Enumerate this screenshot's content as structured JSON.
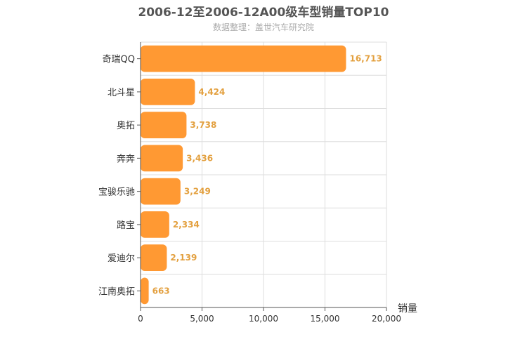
{
  "header": {
    "title": "2006-12至2006-12A00级车型销量TOP10",
    "subtitle": "数据整理：盖世汽车研究院"
  },
  "colors": {
    "bar": "#ff9933",
    "value_label": "#e3a03f",
    "grid": "#dddddd",
    "axis": "#555555"
  },
  "chart_data": {
    "type": "bar",
    "orientation": "horizontal",
    "title": "2006-12至2006-12A00级车型销量TOP10",
    "subtitle": "数据整理：盖世汽车研究院",
    "categories": [
      "奇瑞QQ",
      "北斗星",
      "奥拓",
      "奔奔",
      "宝骏乐驰",
      "路宝",
      "爱迪尔",
      "江南奥拓"
    ],
    "values": [
      16713,
      4424,
      3738,
      3436,
      3249,
      2334,
      2139,
      663
    ],
    "value_labels": [
      "16,713",
      "4,424",
      "3,738",
      "3,436",
      "3,249",
      "2,334",
      "2,139",
      "663"
    ],
    "xlabel": "销量",
    "ylabel": "",
    "xlim": [
      0,
      20000
    ],
    "xticks": [
      0,
      5000,
      10000,
      15000,
      20000
    ],
    "xtick_labels": [
      "0",
      "5,000",
      "10,000",
      "15,000",
      "20,000"
    ],
    "grid": true,
    "legend": "none"
  }
}
